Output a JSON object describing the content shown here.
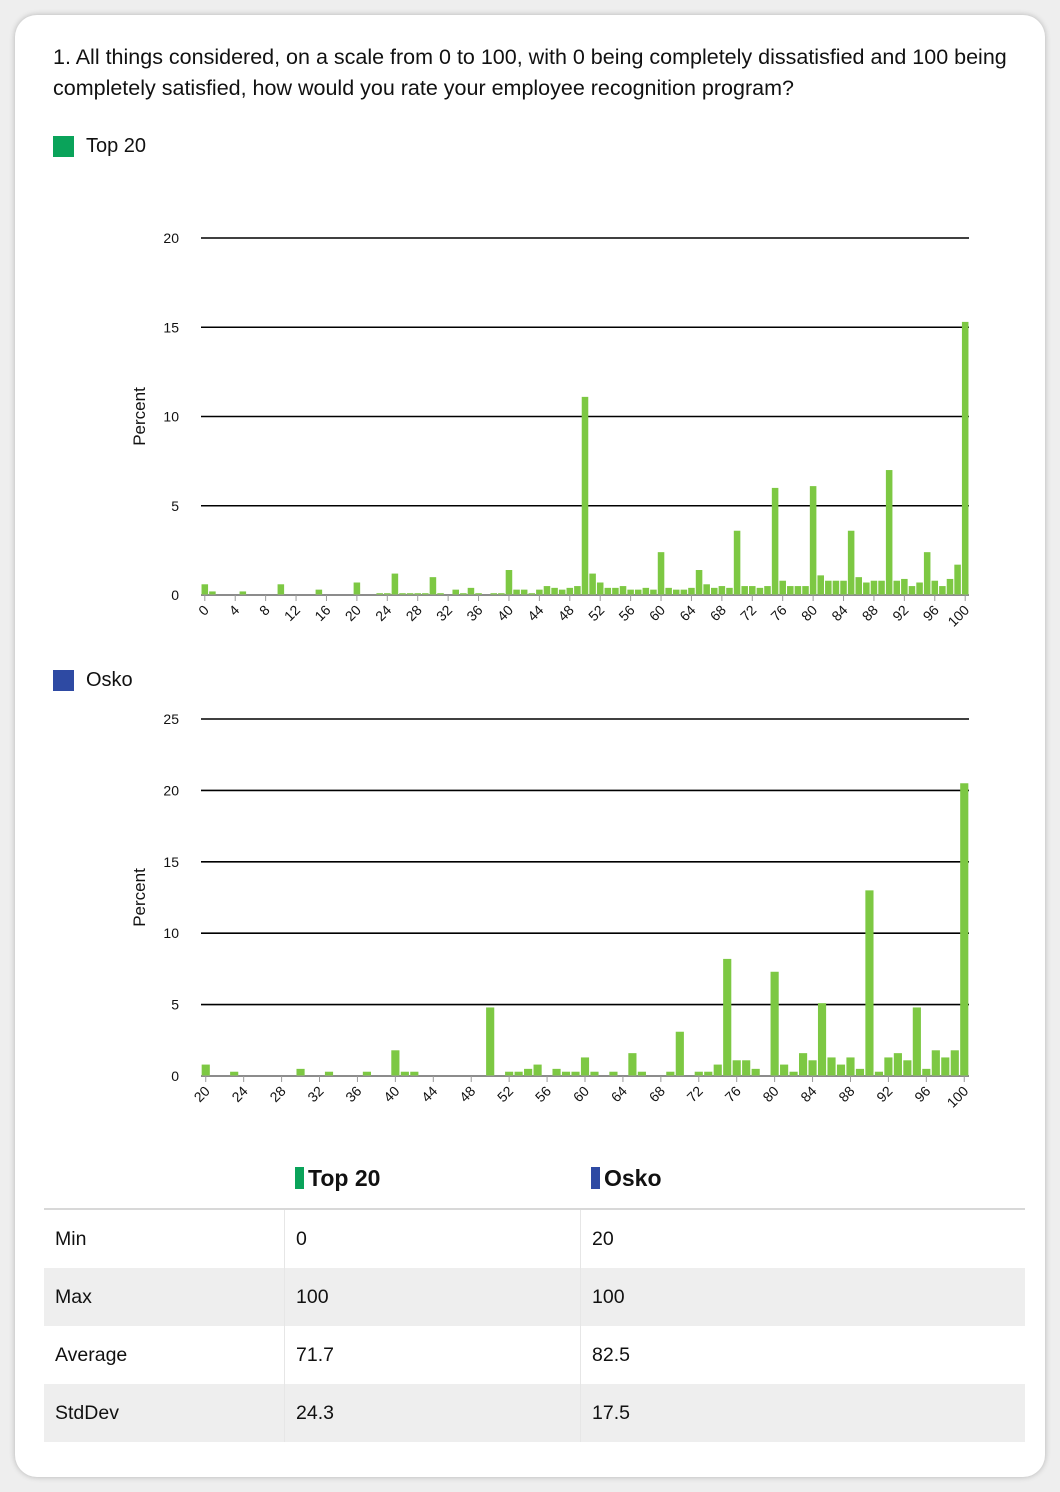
{
  "question": "1. All things considered, on a scale from 0 to 100, with 0 being completely dissatisfied and 100 being completely satisfied, how would you rate your employee recognition program?",
  "colors": {
    "top20": "#0aa35a",
    "osko": "#2e4aa3",
    "bar": "#7dc843",
    "shade": "#eeeeee"
  },
  "charts": [
    {
      "legend_label": "Top 20",
      "legend_color": "#0aa35a",
      "ylabel": "Percent"
    },
    {
      "legend_label": "Osko",
      "legend_color": "#2e4aa3",
      "ylabel": "Percent"
    }
  ],
  "chart_data": [
    {
      "type": "bar",
      "title": "Top 20",
      "ylabel": "Percent",
      "xlabel": "",
      "ylim": [
        0,
        20
      ],
      "yticks": [
        0,
        5,
        10,
        15,
        20
      ],
      "xtick_labels": [
        "0",
        "4",
        "8",
        "12",
        "16",
        "20",
        "24",
        "28",
        "32",
        "36",
        "40",
        "44",
        "48",
        "52",
        "56",
        "60",
        "64",
        "68",
        "72",
        "76",
        "80",
        "84",
        "88",
        "92",
        "96",
        "100"
      ],
      "x": [
        0,
        1,
        2,
        3,
        4,
        5,
        6,
        7,
        8,
        9,
        10,
        11,
        12,
        13,
        14,
        15,
        16,
        17,
        18,
        19,
        20,
        21,
        22,
        23,
        24,
        25,
        26,
        27,
        28,
        29,
        30,
        31,
        32,
        33,
        34,
        35,
        36,
        37,
        38,
        39,
        40,
        41,
        42,
        43,
        44,
        45,
        46,
        47,
        48,
        49,
        50,
        51,
        52,
        53,
        54,
        55,
        56,
        57,
        58,
        59,
        60,
        61,
        62,
        63,
        64,
        65,
        66,
        67,
        68,
        69,
        70,
        71,
        72,
        73,
        74,
        75,
        76,
        77,
        78,
        79,
        80,
        81,
        82,
        83,
        84,
        85,
        86,
        87,
        88,
        89,
        90,
        91,
        92,
        93,
        94,
        95,
        96,
        97,
        98,
        99,
        100
      ],
      "values": [
        0.6,
        0.2,
        0,
        0,
        0,
        0.2,
        0,
        0,
        0,
        0,
        0.6,
        0,
        0,
        0,
        0,
        0.3,
        0,
        0,
        0,
        0,
        0.7,
        0,
        0,
        0.1,
        0.1,
        1.2,
        0.1,
        0.1,
        0.1,
        0.1,
        1.0,
        0.1,
        0,
        0.3,
        0.1,
        0.4,
        0.1,
        0,
        0.1,
        0.1,
        1.4,
        0.3,
        0.3,
        0.1,
        0.3,
        0.5,
        0.4,
        0.3,
        0.4,
        0.5,
        11.1,
        1.2,
        0.7,
        0.4,
        0.4,
        0.5,
        0.3,
        0.3,
        0.4,
        0.3,
        2.4,
        0.4,
        0.3,
        0.3,
        0.4,
        1.4,
        0.6,
        0.4,
        0.5,
        0.4,
        3.6,
        0.5,
        0.5,
        0.4,
        0.5,
        6.0,
        0.8,
        0.5,
        0.5,
        0.5,
        6.1,
        1.1,
        0.8,
        0.8,
        0.8,
        3.6,
        1.0,
        0.7,
        0.8,
        0.8,
        7.0,
        0.8,
        0.9,
        0.5,
        0.7,
        2.4,
        0.8,
        0.5,
        0.9,
        1.7,
        15.3
      ]
    },
    {
      "type": "bar",
      "title": "Osko",
      "ylabel": "Percent",
      "xlabel": "",
      "ylim": [
        0,
        25
      ],
      "yticks": [
        0,
        5,
        10,
        15,
        20,
        25
      ],
      "xtick_labels": [
        "20",
        "24",
        "28",
        "32",
        "36",
        "40",
        "44",
        "48",
        "52",
        "56",
        "60",
        "64",
        "68",
        "72",
        "76",
        "80",
        "84",
        "88",
        "92",
        "96",
        "100"
      ],
      "x": [
        20,
        21,
        22,
        23,
        24,
        25,
        26,
        27,
        28,
        29,
        30,
        31,
        32,
        33,
        34,
        35,
        36,
        37,
        38,
        39,
        40,
        41,
        42,
        43,
        44,
        45,
        46,
        47,
        48,
        49,
        50,
        51,
        52,
        53,
        54,
        55,
        56,
        57,
        58,
        59,
        60,
        61,
        62,
        63,
        64,
        65,
        66,
        67,
        68,
        69,
        70,
        71,
        72,
        73,
        74,
        75,
        76,
        77,
        78,
        79,
        80,
        81,
        82,
        83,
        84,
        85,
        86,
        87,
        88,
        89,
        90,
        91,
        92,
        93,
        94,
        95,
        96,
        97,
        98,
        99,
        100
      ],
      "values": [
        0.8,
        0,
        0,
        0.3,
        0,
        0,
        0,
        0,
        0,
        0,
        0.5,
        0,
        0,
        0.3,
        0,
        0,
        0,
        0.3,
        0,
        0,
        1.8,
        0.3,
        0.3,
        0,
        0,
        0,
        0,
        0,
        0,
        0,
        4.8,
        0,
        0.3,
        0.3,
        0.5,
        0.8,
        0,
        0.5,
        0.3,
        0.3,
        1.3,
        0.3,
        0,
        0.3,
        0,
        1.6,
        0.3,
        0,
        0,
        0.3,
        3.1,
        0,
        0.3,
        0.3,
        0.8,
        8.2,
        1.1,
        1.1,
        0.5,
        0,
        7.3,
        0.8,
        0.3,
        1.6,
        1.1,
        5.1,
        1.3,
        0.8,
        1.3,
        0.5,
        13.0,
        0.3,
        1.3,
        1.6,
        1.1,
        4.8,
        0.5,
        1.8,
        1.3,
        1.8,
        20.5
      ]
    }
  ],
  "stats": {
    "headers": [
      "Top 20",
      "Osko"
    ],
    "rows": [
      {
        "label": "Min",
        "a": "0",
        "b": "20"
      },
      {
        "label": "Max",
        "a": "100",
        "b": "100"
      },
      {
        "label": "Average",
        "a": "71.7",
        "b": "82.5"
      },
      {
        "label": "StdDev",
        "a": "24.3",
        "b": "17.5"
      }
    ]
  }
}
